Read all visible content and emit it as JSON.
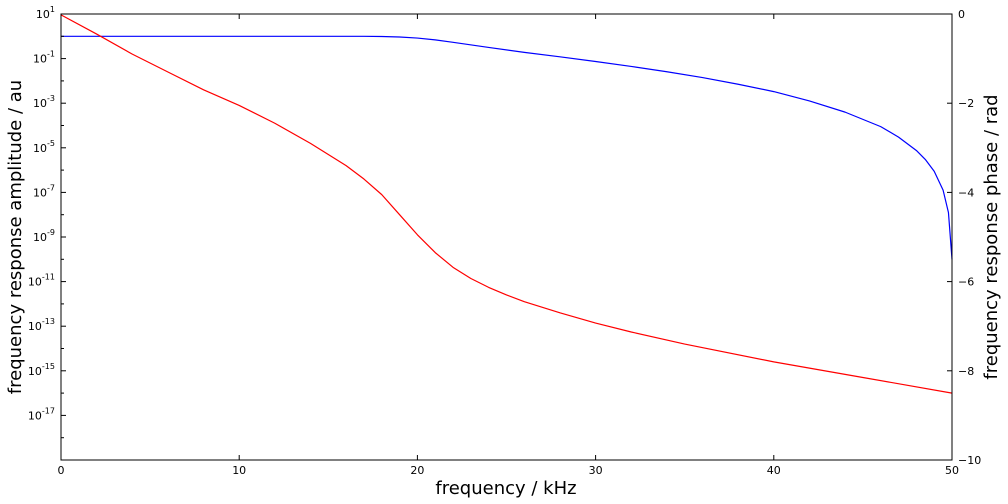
{
  "chart_data": {
    "type": "line",
    "xlabel": "frequency / kHz",
    "ylabel_left": "frequency response amplitude / au",
    "ylabel_right": "frequency response phase / rad",
    "x_range": [
      0,
      50
    ],
    "x_ticks": [
      "0",
      "10",
      "20",
      "30",
      "40",
      "50"
    ],
    "y_left": {
      "scale": "log",
      "range_log10": [
        -19,
        1
      ],
      "ticks": [
        {
          "base": "10",
          "exp": "1",
          "log": 1
        },
        {
          "base": "10",
          "exp": "-1",
          "log": -1
        },
        {
          "base": "10",
          "exp": "-3",
          "log": -3
        },
        {
          "base": "10",
          "exp": "-5",
          "log": -5
        },
        {
          "base": "10",
          "exp": "-7",
          "log": -7
        },
        {
          "base": "10",
          "exp": "-9",
          "log": -9
        },
        {
          "base": "10",
          "exp": "-11",
          "log": -11
        },
        {
          "base": "10",
          "exp": "-13",
          "log": -13
        },
        {
          "base": "10",
          "exp": "-15",
          "log": -15
        },
        {
          "base": "10",
          "exp": "-17",
          "log": -17
        }
      ]
    },
    "y_right": {
      "scale": "linear",
      "range": [
        -10,
        0
      ],
      "ticks": [
        "0",
        "−2",
        "−4",
        "−6",
        "−8",
        "−10"
      ],
      "tick_values": [
        0,
        -2,
        -4,
        -6,
        -8,
        -10
      ]
    },
    "grid": false,
    "series": [
      {
        "axis": "left",
        "color": "#0000ff",
        "x": [
          0,
          5,
          10,
          15,
          17,
          18,
          19,
          20,
          21,
          22,
          24,
          26,
          28,
          30,
          32,
          34,
          36,
          38,
          40,
          42,
          44,
          46,
          47,
          48,
          48.5,
          49,
          49.5,
          49.8,
          50
        ],
        "y": [
          0,
          0,
          0,
          0,
          0,
          -0.01,
          -0.03,
          -0.08,
          -0.16,
          -0.27,
          -0.5,
          -0.72,
          -0.92,
          -1.13,
          -1.35,
          -1.59,
          -1.85,
          -2.15,
          -2.48,
          -2.9,
          -3.4,
          -4.05,
          -4.52,
          -5.12,
          -5.52,
          -6.05,
          -6.9,
          -7.9,
          -10
        ]
      },
      {
        "axis": "right",
        "color": "#ff0000",
        "x": [
          0,
          2,
          4,
          6,
          8,
          10,
          12,
          14,
          16,
          17,
          18,
          19,
          20,
          21,
          22,
          23,
          24,
          25,
          26,
          28,
          30,
          32,
          35,
          40,
          45,
          50
        ],
        "y": [
          -0.02,
          -0.45,
          -0.9,
          -1.3,
          -1.7,
          -2.05,
          -2.45,
          -2.9,
          -3.4,
          -3.7,
          -4.05,
          -4.5,
          -4.95,
          -5.35,
          -5.68,
          -5.93,
          -6.13,
          -6.3,
          -6.45,
          -6.7,
          -6.93,
          -7.13,
          -7.4,
          -7.8,
          -8.15,
          -8.5
        ]
      }
    ]
  }
}
